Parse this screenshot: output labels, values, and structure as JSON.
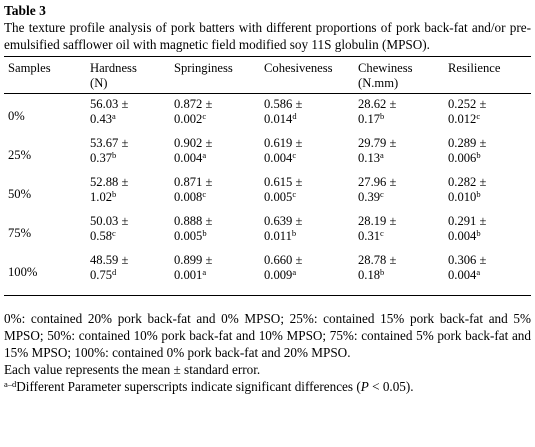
{
  "table_number": "Table 3",
  "caption": "The texture profile analysis of pork batters with different proportions of pork back-fat and/or pre-emulsified safflower oil with magnetic field modified soy 11S globulin (MPSO).",
  "columns": [
    {
      "line1": "Samples",
      "line2": ""
    },
    {
      "line1": "Hardness",
      "line2": "(N)"
    },
    {
      "line1": "Springiness",
      "line2": ""
    },
    {
      "line1": "Cohesiveness",
      "line2": ""
    },
    {
      "line1": "Chewiness",
      "line2": "(N.mm)"
    },
    {
      "line1": "Resilience",
      "line2": ""
    }
  ],
  "rows": [
    {
      "sample": "0%",
      "hardness": {
        "mean": "56.03 ±",
        "se": "0.43",
        "sup": "a"
      },
      "springiness": {
        "mean": "0.872 ±",
        "se": "0.002",
        "sup": "c"
      },
      "cohesiveness": {
        "mean": "0.586 ±",
        "se": "0.014",
        "sup": "d"
      },
      "chewiness": {
        "mean": "28.62 ±",
        "se": "0.17",
        "sup": "b"
      },
      "resilience": {
        "mean": "0.252 ±",
        "se": "0.012",
        "sup": "c"
      }
    },
    {
      "sample": "25%",
      "hardness": {
        "mean": "53.67 ±",
        "se": "0.37",
        "sup": "b"
      },
      "springiness": {
        "mean": "0.902 ±",
        "se": "0.004",
        "sup": "a"
      },
      "cohesiveness": {
        "mean": "0.619 ±",
        "se": "0.004",
        "sup": "c"
      },
      "chewiness": {
        "mean": "29.79 ±",
        "se": "0.13",
        "sup": "a"
      },
      "resilience": {
        "mean": "0.289 ±",
        "se": "0.006",
        "sup": "b"
      }
    },
    {
      "sample": "50%",
      "hardness": {
        "mean": "52.88 ±",
        "se": "1.02",
        "sup": "b"
      },
      "springiness": {
        "mean": "0.871 ±",
        "se": "0.008",
        "sup": "c"
      },
      "cohesiveness": {
        "mean": "0.615 ±",
        "se": "0.005",
        "sup": "c"
      },
      "chewiness": {
        "mean": "27.96 ±",
        "se": "0.39",
        "sup": "c"
      },
      "resilience": {
        "mean": "0.282 ±",
        "se": "0.010",
        "sup": "b"
      }
    },
    {
      "sample": "75%",
      "hardness": {
        "mean": "50.03 ±",
        "se": "0.58",
        "sup": "c"
      },
      "springiness": {
        "mean": "0.888 ±",
        "se": "0.005",
        "sup": "b"
      },
      "cohesiveness": {
        "mean": "0.639 ±",
        "se": "0.011",
        "sup": "b"
      },
      "chewiness": {
        "mean": "28.19 ±",
        "se": "0.31",
        "sup": "c"
      },
      "resilience": {
        "mean": "0.291 ±",
        "se": "0.004",
        "sup": "b"
      }
    },
    {
      "sample": "100%",
      "hardness": {
        "mean": "48.59 ±",
        "se": "0.75",
        "sup": "d"
      },
      "springiness": {
        "mean": "0.899 ±",
        "se": "0.001",
        "sup": "a"
      },
      "cohesiveness": {
        "mean": "0.660 ±",
        "se": "0.009",
        "sup": "a"
      },
      "chewiness": {
        "mean": "28.78 ±",
        "se": "0.18",
        "sup": "b"
      },
      "resilience": {
        "mean": "0.306 ±",
        "se": "0.004",
        "sup": "a"
      }
    }
  ],
  "notes": {
    "composition": "0%: contained 20% pork back-fat and 0% MPSO; 25%: contained 15% pork back-fat and 5% MPSO; 50%: contained 10% pork back-fat and 10% MPSO; 75%: contained 5% pork back-fat and 15% MPSO; 100%: contained 0% pork back-fat and 20% MPSO.",
    "mean_se": "Each value represents the mean ± standard error.",
    "sig_sup": "a–d",
    "sig_text": "Different Parameter superscripts indicate significant differences (",
    "sig_p": "P",
    "sig_end": " < 0.05)."
  }
}
